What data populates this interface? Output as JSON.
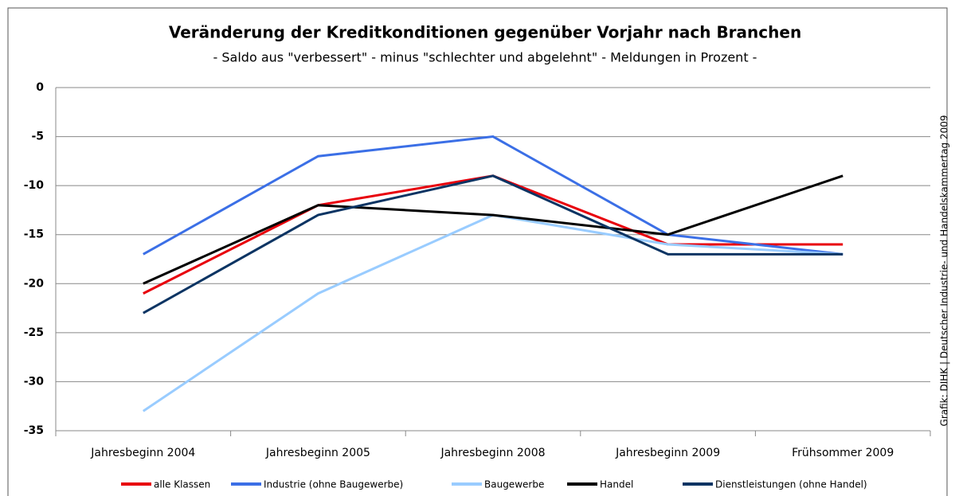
{
  "chart_data": {
    "type": "line",
    "title": "Veränderung der Kreditkonditionen gegenüber Vorjahr nach Branchen",
    "subtitle": "- Saldo aus \"verbessert\" - minus \"schlechter und abgelehnt\" - Meldungen in Prozent -",
    "source": "Grafik: DIHK | Deutscher Industrie- und Handelskammertag 2009",
    "categories": [
      "Jahresbeginn 2004",
      "Jahresbeginn 2005",
      "Jahresbeginn 2008",
      "Jahresbeginn 2009",
      "Frühsommer 2009"
    ],
    "series": [
      {
        "name": "alle Klassen",
        "color": "#e8000b",
        "values": [
          -21,
          -12,
          -9,
          -16,
          -16
        ]
      },
      {
        "name": "Industrie (ohne Baugewerbe)",
        "color": "#3b6fe6",
        "values": [
          -17,
          -7,
          -5,
          -15,
          -17
        ]
      },
      {
        "name": "Baugewerbe",
        "color": "#99ccff",
        "values": [
          -33,
          -21,
          -13,
          -16,
          -17
        ]
      },
      {
        "name": "Handel",
        "color": "#000000",
        "values": [
          -20,
          -12,
          -13,
          -15,
          -9
        ]
      },
      {
        "name": "Dienstleistungen (ohne Handel)",
        "color": "#0b3463",
        "values": [
          -23,
          -13,
          -9,
          -17,
          -17
        ]
      }
    ],
    "ylim": [
      -35,
      0
    ],
    "yticks": [
      0,
      -5,
      -10,
      -15,
      -20,
      -25,
      -30,
      -35
    ],
    "grid": true
  }
}
